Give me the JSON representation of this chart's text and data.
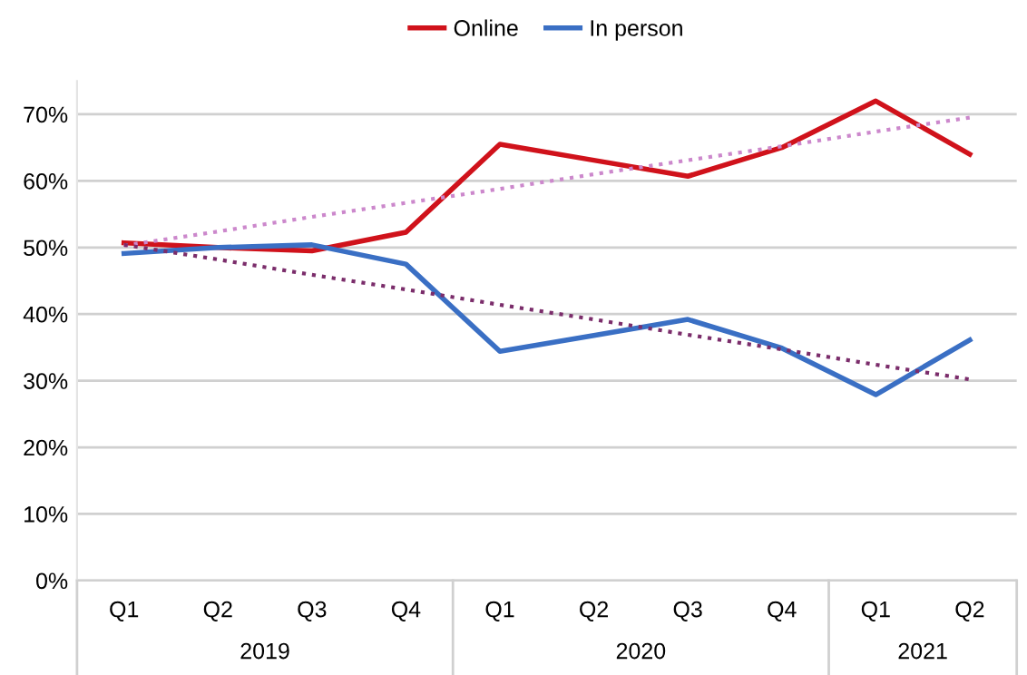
{
  "chart_data": {
    "type": "line",
    "categories": [
      "Q1",
      "Q2",
      "Q3",
      "Q4",
      "Q1",
      "Q2",
      "Q3",
      "Q4",
      "Q1",
      "Q2"
    ],
    "annotations": [
      "2019",
      "2020",
      "2021"
    ],
    "series": [
      {
        "name": "Online",
        "color": "#d0121b",
        "values": [
          50.7,
          50.0,
          49.5,
          52.3,
          65.5,
          63.1,
          60.7,
          65.0,
          72.0,
          64.0
        ]
      },
      {
        "name": "In person",
        "color": "#3a6fc4",
        "values": [
          49.1,
          50.0,
          50.4,
          47.5,
          34.4,
          36.8,
          39.2,
          34.9,
          27.9,
          36.1
        ]
      },
      {
        "color": "#cc88cc",
        "line_style": "dotted",
        "values": [
          50.3,
          52.4,
          54.6,
          56.7,
          58.8,
          61.0,
          63.1,
          65.2,
          67.4,
          69.5
        ]
      },
      {
        "color": "#7b2d6b",
        "line_style": "dotted",
        "values": [
          50.4,
          48.2,
          45.9,
          43.7,
          41.4,
          39.2,
          36.9,
          34.7,
          32.4,
          30.2
        ]
      }
    ],
    "ylim": [
      0,
      75
    ],
    "yticks": [
      {
        "value": 0,
        "label": "0%"
      },
      {
        "value": 10,
        "label": "10%"
      },
      {
        "value": 20,
        "label": "20%"
      },
      {
        "value": 30,
        "label": "30%"
      },
      {
        "value": 40,
        "label": "40%"
      },
      {
        "value": 50,
        "label": "50%"
      },
      {
        "value": 60,
        "label": "60%"
      },
      {
        "value": 70,
        "label": "70%"
      }
    ],
    "grid": "y",
    "legend": "top",
    "marker": "none",
    "line_style": "solid"
  }
}
